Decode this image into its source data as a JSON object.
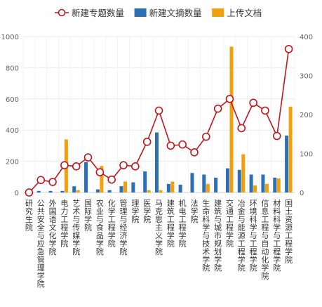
{
  "chart_data": {
    "type": "bar",
    "categories": [
      "研究生院",
      "公共安全与应急管理学院",
      "外国语文化学院",
      "电力工程学院",
      "艺术与传媒学院",
      "国际学院",
      "农业与食品学院",
      "化学工程学院",
      "管理与经济学院",
      "理学院",
      "医学院",
      "马克思主义学院",
      "建筑工程学院",
      "机电工程学院",
      "法学院",
      "生命科学与技术学院",
      "建筑与城市规划学院",
      "交通工程学院",
      "冶金与能源工程学院",
      "环境科学与工程学院",
      "信息工程与自动化学院",
      "材料科学与工程学院",
      "国土资源工程学院"
    ],
    "legend_position": "top",
    "grid": true,
    "y_left": {
      "min": 0,
      "max": 1000,
      "ticks": [
        "0",
        "200",
        "400",
        "600",
        "800",
        "1000"
      ]
    },
    "y_right": {
      "min": 0,
      "max": 400,
      "ticks": [
        "0",
        "100",
        "200",
        "300",
        "400"
      ]
    },
    "series": [
      {
        "name": "新建专题数量",
        "kind": "line",
        "axis": "right",
        "color": "#c0161d",
        "values": [
          0,
          32,
          27,
          70,
          67,
          90,
          52,
          33,
          70,
          67,
          130,
          210,
          120,
          123,
          103,
          143,
          215,
          240,
          165,
          230,
          210,
          145,
          368
        ]
      },
      {
        "name": "新建文摘数量",
        "kind": "bar",
        "axis": "left",
        "color": "#2d6fb5",
        "values": [
          0,
          10,
          10,
          10,
          40,
          195,
          20,
          15,
          40,
          65,
          135,
          385,
          55,
          50,
          125,
          115,
          95,
          155,
          145,
          115,
          115,
          95,
          365
        ]
      },
      {
        "name": "上传文档",
        "kind": "bar",
        "axis": "left",
        "color": "#f0a00c",
        "values": [
          0,
          0,
          0,
          340,
          15,
          0,
          170,
          0,
          70,
          0,
          15,
          15,
          70,
          0,
          0,
          55,
          0,
          935,
          245,
          45,
          55,
          90,
          550
        ]
      }
    ]
  }
}
